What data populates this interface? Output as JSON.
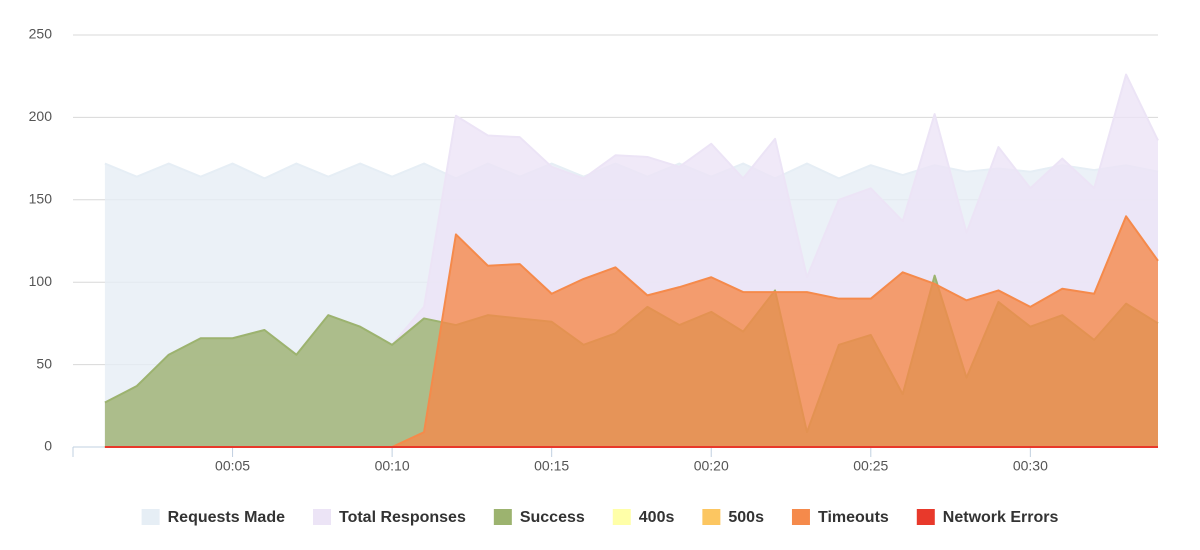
{
  "chart_data": {
    "type": "area",
    "x": [
      1,
      2,
      3,
      4,
      5,
      6,
      7,
      8,
      9,
      10,
      11,
      12,
      13,
      14,
      15,
      16,
      17,
      18,
      19,
      20,
      21,
      22,
      23,
      24,
      25,
      26,
      27,
      28,
      29,
      30,
      31,
      32,
      33,
      34
    ],
    "xlim": [
      0,
      34
    ],
    "xticks": [
      {
        "value": 5,
        "label": "00:05"
      },
      {
        "value": 10,
        "label": "00:10"
      },
      {
        "value": 15,
        "label": "00:15"
      },
      {
        "value": 20,
        "label": "00:20"
      },
      {
        "value": 25,
        "label": "00:25"
      },
      {
        "value": 30,
        "label": "00:30"
      }
    ],
    "ylim": [
      0,
      250
    ],
    "yticks": [
      0,
      50,
      100,
      150,
      200,
      250
    ],
    "grid": true,
    "legend": "bottom",
    "series": [
      {
        "name": "Requests Made",
        "color": "#e6eef5",
        "values": [
          172,
          164,
          172,
          164,
          172,
          163,
          172,
          164,
          172,
          164,
          172,
          163,
          172,
          164,
          172,
          164,
          172,
          164,
          172,
          164,
          172,
          163,
          172,
          163,
          171,
          165,
          171,
          167,
          169,
          167,
          171,
          168,
          171,
          167
        ]
      },
      {
        "name": "Total Responses",
        "color": "#ece4f6",
        "values": [
          27,
          37,
          56,
          66,
          66,
          71,
          56,
          80,
          73,
          62,
          85,
          201,
          189,
          188,
          170,
          163,
          177,
          176,
          170,
          184,
          163,
          187,
          103,
          150,
          157,
          137,
          202,
          130,
          182,
          157,
          175,
          157,
          226,
          186
        ]
      },
      {
        "name": "Success",
        "color": "#9cb36f",
        "values": [
          27,
          37,
          56,
          66,
          66,
          71,
          56,
          80,
          73,
          62,
          78,
          74,
          80,
          78,
          76,
          62,
          69,
          85,
          74,
          82,
          70,
          95,
          9,
          62,
          68,
          32,
          104,
          42,
          88,
          73,
          80,
          65,
          87,
          75
        ]
      },
      {
        "name": "400s",
        "color": "#ffffa8",
        "values": [
          0,
          0,
          0,
          0,
          0,
          0,
          0,
          0,
          0,
          0,
          0,
          0,
          0,
          0,
          0,
          0,
          0,
          0,
          0,
          0,
          0,
          0,
          0,
          0,
          0,
          0,
          0,
          0,
          0,
          0,
          0,
          0,
          0,
          0
        ]
      },
      {
        "name": "500s",
        "color": "#fcc661",
        "values": [
          0,
          0,
          0,
          0,
          0,
          0,
          0,
          0,
          0,
          0,
          0,
          0,
          0,
          0,
          0,
          0,
          0,
          0,
          0,
          0,
          0,
          0,
          0,
          0,
          0,
          0,
          0,
          0,
          0,
          0,
          0,
          0,
          0,
          0
        ]
      },
      {
        "name": "Timeouts",
        "color": "#f58a4b",
        "values": [
          0,
          0,
          0,
          0,
          0,
          0,
          0,
          0,
          0,
          0,
          9,
          129,
          110,
          111,
          93,
          102,
          109,
          92,
          97,
          103,
          94,
          94,
          94,
          90,
          90,
          106,
          99,
          89,
          95,
          85,
          96,
          93,
          140,
          113
        ]
      },
      {
        "name": "Network Errors",
        "color": "#e8392b",
        "values": [
          0,
          0,
          0,
          0,
          0,
          0,
          0,
          0,
          0,
          0,
          0,
          0,
          0,
          0,
          0,
          0,
          0,
          0,
          0,
          0,
          0,
          0,
          0,
          0,
          0,
          0,
          0,
          0,
          0,
          0,
          0,
          0,
          0,
          0
        ]
      }
    ]
  }
}
